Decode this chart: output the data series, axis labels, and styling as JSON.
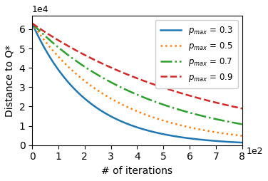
{
  "title": "",
  "xlabel": "# of iterations",
  "ylabel": "Distance to Q*",
  "xlim_raw": [
    0,
    800
  ],
  "ylim_raw": [
    0,
    67000
  ],
  "curves": [
    {
      "label": "$p_{max}$ = 0.3",
      "color": "#1f77b4",
      "linestyle": "solid",
      "decay_rate": 0.048,
      "initial_value": 63000
    },
    {
      "label": "$p_{max}$ = 0.5",
      "color": "#ff7f0e",
      "linestyle": "dotted",
      "decay_rate": 0.032,
      "initial_value": 63000
    },
    {
      "label": "$p_{max}$ = 0.7",
      "color": "#2ca02c",
      "linestyle": "dashdot",
      "decay_rate": 0.022,
      "initial_value": 63000
    },
    {
      "label": "$p_{max}$ = 0.9",
      "color": "#d62728",
      "linestyle": "dashed",
      "decay_rate": 0.015,
      "initial_value": 63000
    }
  ],
  "legend_loc": "upper right",
  "figsize": [
    3.76,
    2.54
  ],
  "dpi": 100,
  "xlabel_fontsize": 10,
  "ylabel_fontsize": 10,
  "legend_fontsize": 8.5,
  "linewidth": 1.8,
  "xticks": [
    0,
    1,
    2,
    3,
    4,
    5,
    6,
    7,
    8
  ],
  "yticks": [
    0,
    1,
    2,
    3,
    4,
    5,
    6
  ],
  "x_divisor": 100,
  "y_divisor": 10000
}
